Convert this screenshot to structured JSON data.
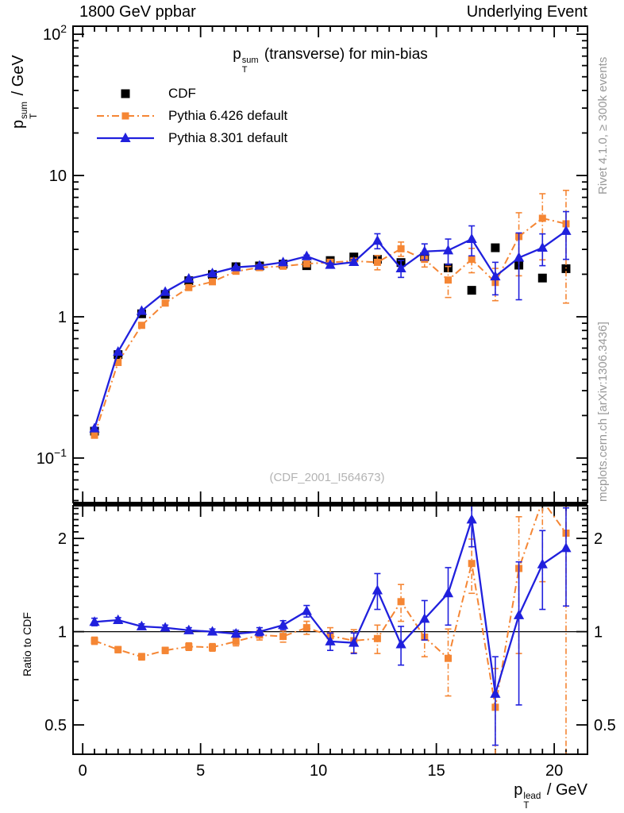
{
  "header": {
    "left": "1800 GeV ppbar",
    "right": "Underlying Event"
  },
  "side_text_top": "Rivet 4.1.0, ≥ 300k events",
  "side_text_bottom": "mcplots.cern.ch [arXiv:1306.3436]",
  "watermark": "(CDF_2001_I564673)",
  "title": {
    "base": "p",
    "sup": "sum",
    "sub": "T",
    "rest": " (transverse) for min-bias"
  },
  "axes": {
    "x_label": {
      "base": "p",
      "sup": "lead",
      "sub": "T",
      "rest": " / GeV"
    },
    "y_label": {
      "base": "p",
      "sup": "sum",
      "sub": "T",
      "rest": " / GeV"
    },
    "ratio_label": "Ratio to CDF",
    "x_tick_labels": [
      {
        "m": "0",
        "v": 0
      },
      {
        "m": "5",
        "v": 5
      },
      {
        "m": "10",
        "v": 10
      },
      {
        "m": "15",
        "v": 15
      },
      {
        "m": "20",
        "v": 20
      }
    ],
    "y_tick_labels": [
      {
        "m": "10",
        "e": "2",
        "v": 100
      },
      {
        "m": "10",
        "e": "",
        "v": 10
      },
      {
        "m": "1",
        "e": "",
        "v": 1
      },
      {
        "m": "10",
        "e": "−1",
        "v": 0.1
      }
    ],
    "ratio_tick_labels": [
      {
        "m": "2",
        "v": 2
      },
      {
        "m": "1",
        "v": 1
      },
      {
        "m": "0.5",
        "v": 0.5
      }
    ]
  },
  "legend": [
    {
      "label": "CDF"
    },
    {
      "label": "Pythia 6.426 default"
    },
    {
      "label": "Pythia 8.301 default"
    }
  ],
  "colors": {
    "cdf": "#000000",
    "pythia6": "#f58634",
    "pythia8": "#2020dd",
    "gray_text": "#999999"
  },
  "chart_data": [
    {
      "type": "scatter",
      "title": "pT^sum (transverse) for min-bias",
      "xlabel": "pT^lead / GeV",
      "ylabel": "pT^sum / GeV",
      "xlim": [
        -0.41,
        21.41
      ],
      "ylim": [
        0.0484,
        114
      ],
      "yscale": "log",
      "grid": false,
      "legend_position": "top-left",
      "x": [
        0.5,
        1.5,
        2.5,
        3.5,
        4.5,
        5.5,
        6.5,
        7.5,
        8.5,
        9.5,
        10.5,
        11.5,
        12.5,
        13.5,
        14.5,
        15.5,
        16.5,
        17.5,
        18.5,
        19.5,
        20.5
      ],
      "series": [
        {
          "name": "CDF",
          "color": "#000000",
          "marker": "square",
          "msize": 11,
          "line": "none",
          "values": [
            0.155,
            0.54,
            1.05,
            1.44,
            1.8,
            1.99,
            2.26,
            2.29,
            2.36,
            2.3,
            2.5,
            2.65,
            2.55,
            2.42,
            2.66,
            2.22,
            1.54,
            3.08,
            2.32,
            1.88,
            2.19
          ],
          "errors": [
            0.003,
            0.005,
            0.008,
            0.01,
            0.012,
            0.014,
            0.016,
            0.018,
            0.02,
            0.025,
            0.03,
            0.035,
            0.04,
            0.045,
            0.05,
            0.05,
            0.06,
            0.09,
            0.09,
            0.09,
            0.1
          ]
        },
        {
          "name": "Pythia 6.426 default",
          "color": "#f58634",
          "marker": "square",
          "msize": 9,
          "line": "dashdot",
          "values": [
            0.145,
            0.475,
            0.87,
            1.25,
            1.61,
            1.77,
            2.1,
            2.23,
            2.28,
            2.37,
            2.43,
            2.48,
            2.43,
            3.03,
            2.55,
            1.82,
            2.55,
            1.75,
            3.7,
            4.98,
            4.55
          ],
          "errors": [
            0.003,
            0.006,
            0.01,
            0.012,
            0.015,
            0.018,
            0.022,
            0.027,
            0.033,
            0.04,
            0.06,
            0.09,
            0.28,
            0.35,
            0.3,
            0.45,
            0.5,
            0.45,
            1.75,
            2.45,
            3.3
          ]
        },
        {
          "name": "Pythia 8.301 default",
          "color": "#2020dd",
          "marker": "triangle",
          "msize": 11,
          "line": "solid",
          "values": [
            0.162,
            0.565,
            1.1,
            1.5,
            1.86,
            2.03,
            2.24,
            2.3,
            2.43,
            2.68,
            2.33,
            2.44,
            3.45,
            2.2,
            2.9,
            2.95,
            3.55,
            1.93,
            2.62,
            3.08,
            4.05
          ],
          "errors": [
            0.003,
            0.006,
            0.01,
            0.012,
            0.015,
            0.018,
            0.022,
            0.027,
            0.033,
            0.05,
            0.07,
            0.1,
            0.42,
            0.3,
            0.38,
            0.6,
            0.85,
            0.5,
            1.3,
            0.78,
            1.5
          ]
        }
      ]
    },
    {
      "type": "scatter",
      "title": "Ratio to CDF",
      "xlabel": "pT^lead / GeV",
      "ylabel": "Ratio to CDF",
      "xlim": [
        -0.41,
        21.41
      ],
      "ylim": [
        0.402,
        2.55
      ],
      "yscale": "log",
      "grid": false,
      "reference_line": 1,
      "x": [
        0.5,
        1.5,
        2.5,
        3.5,
        4.5,
        5.5,
        6.5,
        7.5,
        8.5,
        9.5,
        10.5,
        11.5,
        12.5,
        13.5,
        14.5,
        15.5,
        16.5,
        17.5,
        18.5,
        19.5,
        20.5
      ],
      "series": [
        {
          "name": "Pythia 6.426 default",
          "color": "#f58634",
          "marker": "square",
          "msize": 9,
          "line": "dashdot",
          "values": [
            0.935,
            0.875,
            0.83,
            0.87,
            0.895,
            0.89,
            0.93,
            0.975,
            0.965,
            1.03,
            0.97,
            0.935,
            0.95,
            1.25,
            0.96,
            0.82,
            1.66,
            0.57,
            1.6,
            2.65,
            2.08
          ],
          "errors": [
            0.025,
            0.02,
            0.02,
            0.02,
            0.025,
            0.025,
            0.03,
            0.035,
            0.04,
            0.05,
            0.06,
            0.08,
            0.1,
            0.17,
            0.13,
            0.2,
            0.33,
            0.19,
            0.75,
            1.2,
            1.7
          ]
        },
        {
          "name": "Pythia 8.301 default",
          "color": "#2020dd",
          "marker": "triangle",
          "msize": 11,
          "line": "solid",
          "values": [
            1.075,
            1.09,
            1.04,
            1.03,
            1.01,
            1.0,
            0.985,
            1.0,
            1.05,
            1.165,
            0.93,
            0.92,
            1.36,
            0.91,
            1.1,
            1.33,
            2.3,
            0.63,
            1.13,
            1.65,
            1.86
          ],
          "errors": [
            0.03,
            0.02,
            0.02,
            0.02,
            0.02,
            0.02,
            0.025,
            0.03,
            0.035,
            0.05,
            0.06,
            0.07,
            0.18,
            0.13,
            0.16,
            0.28,
            0.42,
            0.2,
            0.55,
            0.47,
            0.65
          ]
        }
      ]
    }
  ]
}
